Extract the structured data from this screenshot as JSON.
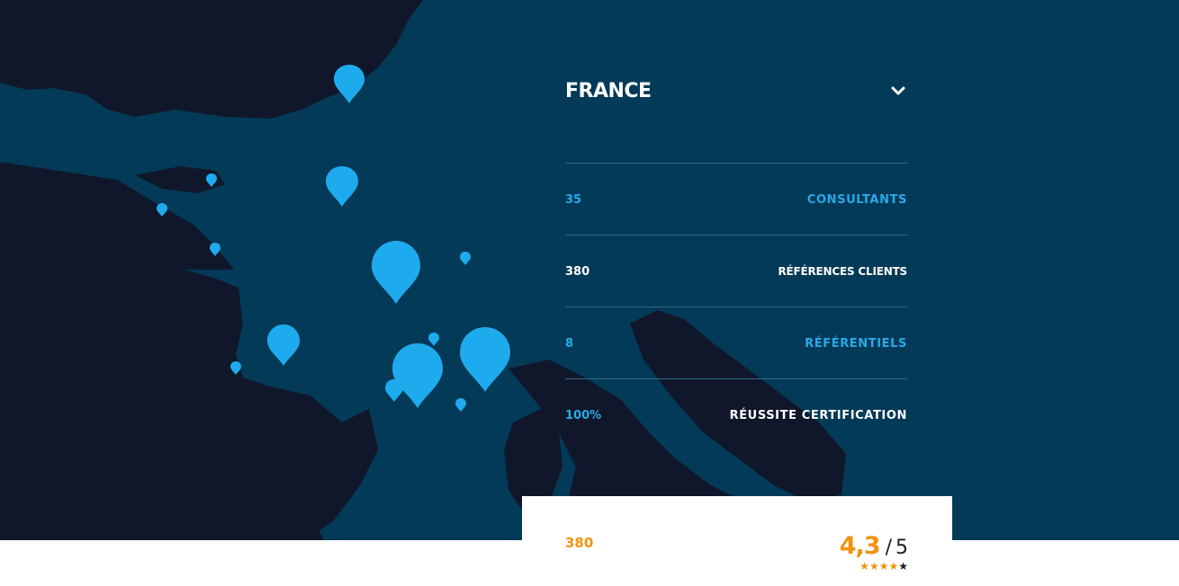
{
  "country": {
    "name": "FRANCE",
    "toggle_icon": "chevron-down-icon"
  },
  "stats": [
    {
      "value": "35",
      "label": "CONSULTANTS",
      "color": "#29a9e8"
    },
    {
      "value": "380",
      "label": "RÉFÉRENCES CLIENTS",
      "color": "#ffffff"
    },
    {
      "value": "8",
      "label": "RÉFÉRENTIELS",
      "color": "#29a9e8"
    },
    {
      "value": "100%",
      "label": "RÉUSSITE CERTIFICATION",
      "color": "#ffffff"
    }
  ],
  "rating": {
    "review_count": "380",
    "score": "4,3",
    "separator": "/",
    "max": "5",
    "stars_filled": 4,
    "stars_total": 5
  },
  "colors": {
    "sea": "#033a57",
    "land": "#10172a",
    "pin": "#1eabee",
    "accent_orange": "#f0930f"
  }
}
